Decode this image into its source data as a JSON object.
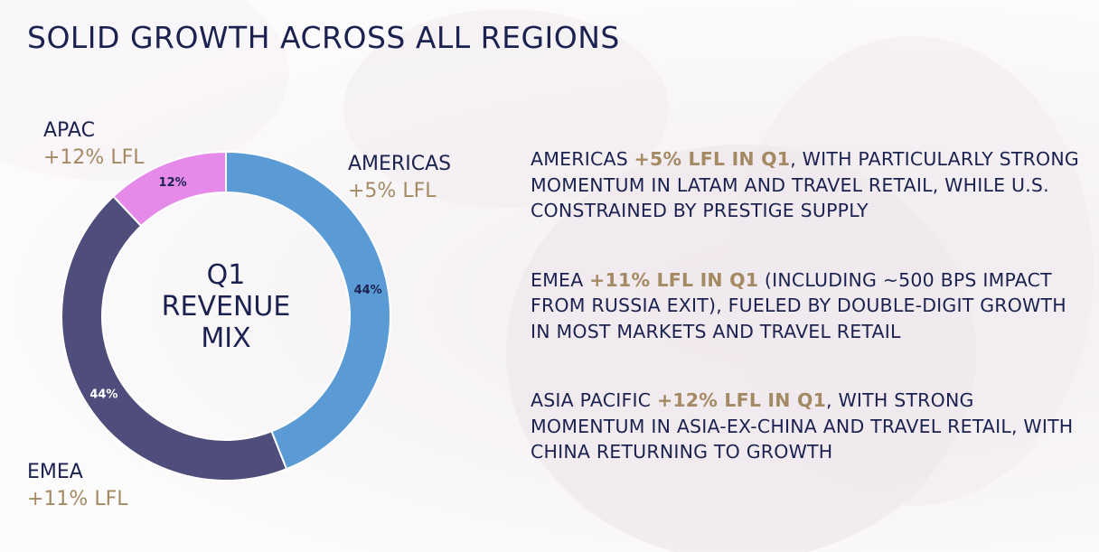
{
  "title": "SOLID GROWTH ACROSS ALL REGIONS",
  "center_label": [
    "Q1",
    "REVENUE",
    "MIX"
  ],
  "labels": {
    "apac": {
      "name": "APAC",
      "lfl": "+12% LFL"
    },
    "americas": {
      "name": "AMERICAS",
      "lfl": "+5% LFL"
    },
    "emea": {
      "name": "EMEA",
      "lfl": "+11% LFL"
    }
  },
  "chart_data": {
    "type": "pie",
    "variant": "donut",
    "title": "Q1 REVENUE MIX",
    "categories": [
      "AMERICAS",
      "EMEA",
      "APAC"
    ],
    "values": [
      44,
      44,
      12
    ],
    "data_labels": [
      "44%",
      "44%",
      "12%"
    ],
    "colors": [
      "#5b9bd5",
      "#4f4d7c",
      "#e68aea"
    ]
  },
  "bullets": [
    {
      "region": "AMERICAS",
      "highlight": "+5% LFL IN Q1",
      "text": ", WITH PARTICULARLY STRONG MOMENTUM IN LATAM AND TRAVEL RETAIL, WHILE U.S. CONSTRAINED BY PRESTIGE SUPPLY"
    },
    {
      "region": "EMEA",
      "highlight": "+11% LFL IN Q1",
      "text": " (INCLUDING ~500 BPS IMPACT FROM RUSSIA EXIT), FUELED BY DOUBLE-DIGIT GROWTH IN MOST MARKETS AND TRAVEL RETAIL"
    },
    {
      "region": "ASIA PACIFIC",
      "highlight": "+12% LFL IN Q1",
      "text": ", WITH STRONG MOMENTUM IN ASIA-EX-CHINA AND TRAVEL RETAIL, WITH CHINA RETURNING TO GROWTH"
    }
  ]
}
